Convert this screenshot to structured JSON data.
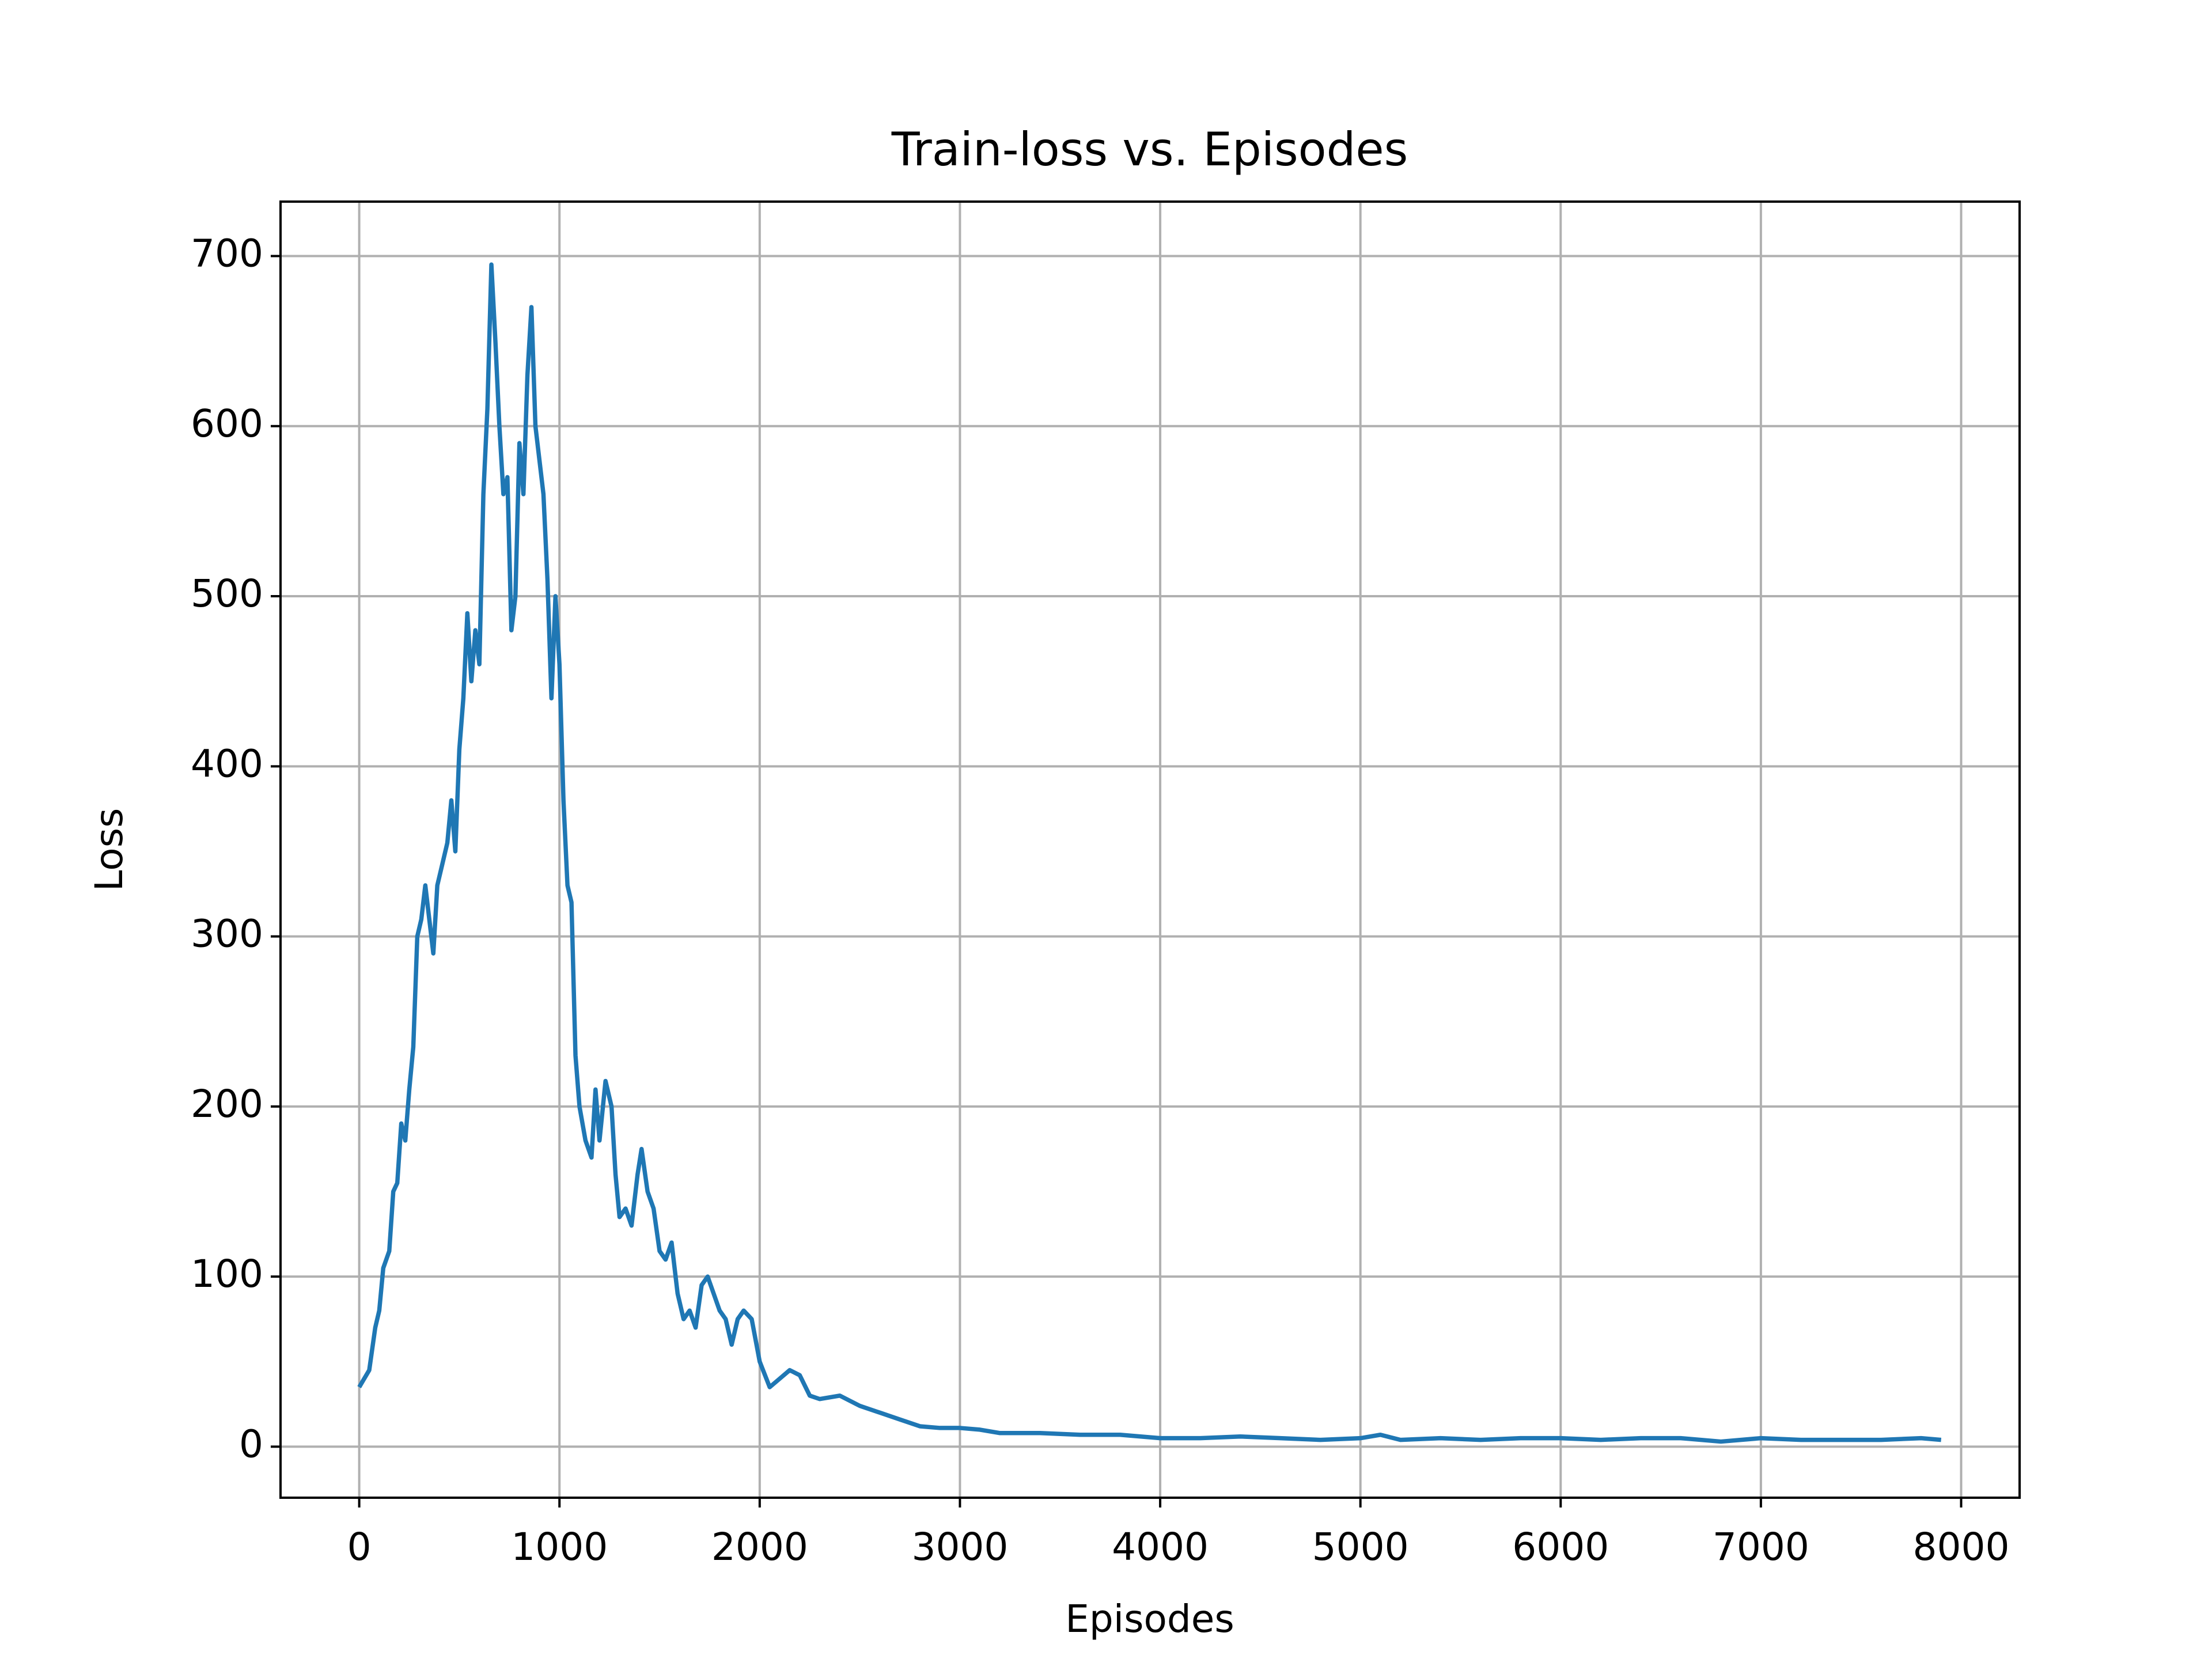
{
  "chart_data": {
    "type": "line",
    "title": "Train-loss vs. Episodes",
    "x_label": "Episodes",
    "y_label": "Loss",
    "xlim": [
      -393,
      8292
    ],
    "xticks": [
      0,
      1000,
      2000,
      3000,
      4000,
      5000,
      6000,
      7000,
      8000
    ],
    "ylim": [
      -30,
      732
    ],
    "yticks": [
      0,
      100,
      200,
      300,
      400,
      500,
      600,
      700
    ],
    "grid": true,
    "series": [
      {
        "name": "Loss",
        "color": "#1f77b4",
        "x": [
          0,
          50,
          80,
          100,
          120,
          150,
          170,
          190,
          210,
          230,
          250,
          270,
          290,
          310,
          330,
          350,
          370,
          390,
          410,
          440,
          460,
          480,
          500,
          520,
          540,
          560,
          580,
          600,
          620,
          640,
          660,
          680,
          700,
          720,
          740,
          760,
          780,
          800,
          820,
          840,
          860,
          880,
          900,
          920,
          940,
          960,
          980,
          1000,
          1020,
          1040,
          1060,
          1080,
          1100,
          1130,
          1160,
          1180,
          1200,
          1230,
          1260,
          1280,
          1300,
          1330,
          1360,
          1390,
          1410,
          1440,
          1470,
          1500,
          1530,
          1560,
          1590,
          1620,
          1650,
          1680,
          1710,
          1740,
          1770,
          1800,
          1830,
          1860,
          1890,
          1920,
          1960,
          2000,
          2050,
          2100,
          2150,
          2200,
          2250,
          2300,
          2400,
          2500,
          2600,
          2700,
          2800,
          2900,
          3000,
          3100,
          3200,
          3400,
          3600,
          3800,
          4000,
          4200,
          4400,
          4600,
          4800,
          5000,
          5100,
          5200,
          5400,
          5600,
          5800,
          6000,
          6200,
          6400,
          6600,
          6800,
          7000,
          7200,
          7400,
          7600,
          7800,
          7900
        ],
        "values": [
          35,
          45,
          70,
          80,
          105,
          115,
          150,
          155,
          190,
          180,
          210,
          235,
          300,
          310,
          330,
          310,
          290,
          330,
          340,
          355,
          380,
          350,
          410,
          440,
          490,
          450,
          480,
          460,
          560,
          610,
          695,
          650,
          600,
          560,
          570,
          480,
          500,
          590,
          560,
          630,
          670,
          600,
          580,
          560,
          510,
          440,
          500,
          460,
          380,
          330,
          320,
          230,
          200,
          180,
          170,
          210,
          180,
          215,
          200,
          160,
          135,
          140,
          130,
          160,
          175,
          150,
          140,
          115,
          110,
          120,
          90,
          75,
          80,
          70,
          95,
          100,
          90,
          80,
          75,
          60,
          75,
          80,
          75,
          50,
          35,
          40,
          45,
          42,
          30,
          28,
          30,
          24,
          20,
          16,
          12,
          11,
          11,
          10,
          8,
          8,
          7,
          7,
          5,
          5,
          6,
          5,
          4,
          5,
          7,
          4,
          5,
          4,
          5,
          5,
          4,
          5,
          5,
          3,
          5,
          4,
          4,
          4,
          5,
          4
        ]
      }
    ]
  }
}
